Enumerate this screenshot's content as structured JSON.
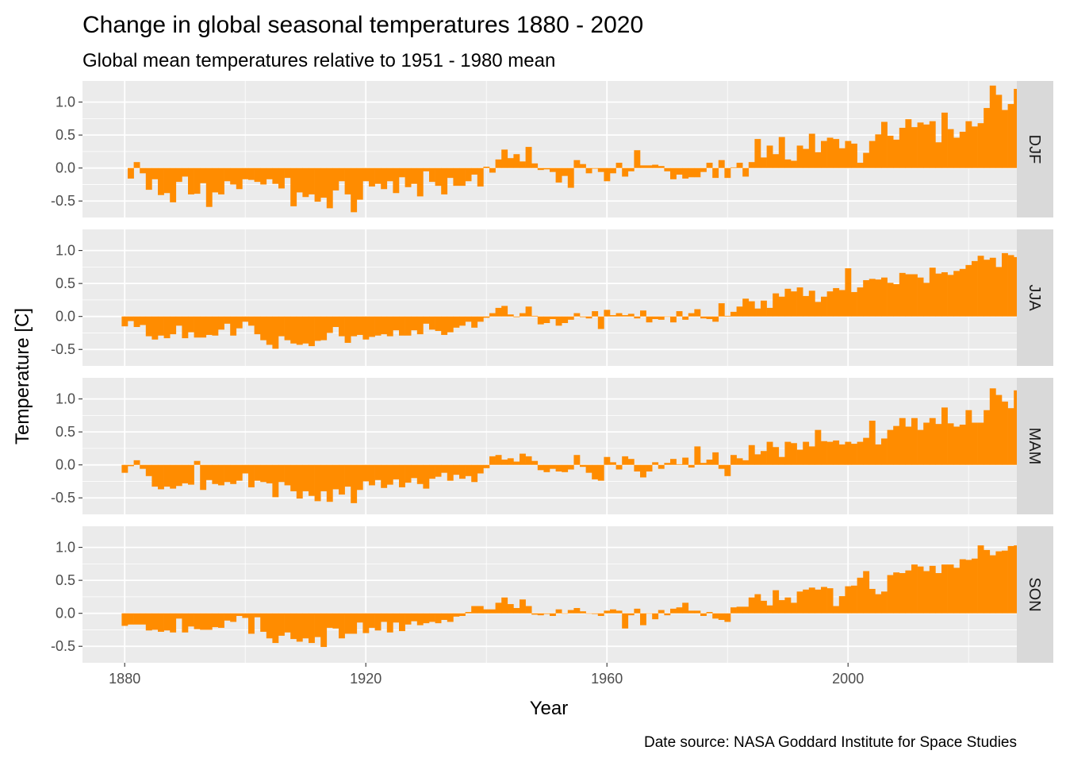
{
  "chart_data": {
    "type": "bar",
    "title": "Change in global seasonal temperatures 1880 - 2020",
    "subtitle": "Global mean temperatures relative to 1951 - 1980 mean",
    "xlabel": "Year",
    "ylabel": "Temperature [C]",
    "caption": "Date source: NASA Goddard Institute for Space Studies",
    "x_ticks": [
      1880,
      1920,
      1960,
      2000
    ],
    "y_ticks": [
      -0.5,
      0.0,
      0.5,
      1.0
    ],
    "y_tick_labels": [
      "-0.5",
      "0.0",
      "0.5",
      "1.0"
    ],
    "xlim": [
      1873,
      2028
    ],
    "ylim": [
      -0.75,
      1.32
    ],
    "bar_color": "#ff8c00",
    "panel_color": "#ebebeb",
    "strip_color": "#d9d9d9",
    "facets": [
      {
        "label": "DJF",
        "start_year": 1881,
        "values": [
          -0.16,
          0.09,
          -0.08,
          -0.33,
          -0.17,
          -0.41,
          -0.38,
          -0.52,
          -0.21,
          -0.13,
          -0.4,
          -0.39,
          -0.23,
          -0.59,
          -0.37,
          -0.4,
          -0.2,
          -0.25,
          -0.32,
          -0.17,
          -0.18,
          -0.21,
          -0.25,
          -0.17,
          -0.24,
          -0.31,
          -0.15,
          -0.58,
          -0.37,
          -0.44,
          -0.4,
          -0.51,
          -0.45,
          -0.61,
          -0.34,
          -0.2,
          -0.4,
          -0.67,
          -0.48,
          -0.2,
          -0.28,
          -0.24,
          -0.32,
          -0.2,
          -0.38,
          -0.14,
          -0.29,
          -0.24,
          -0.43,
          -0.05,
          -0.21,
          -0.27,
          -0.4,
          -0.15,
          -0.27,
          -0.27,
          -0.2,
          -0.1,
          -0.28,
          0.02,
          -0.07,
          0.13,
          0.28,
          0.15,
          0.21,
          0.1,
          0.32,
          0.07,
          -0.03,
          -0.02,
          -0.06,
          -0.22,
          -0.12,
          -0.3,
          0.12,
          0.06,
          -0.08,
          -0.01,
          -0.06,
          -0.2,
          -0.08,
          0.08,
          -0.13,
          -0.05,
          0.27,
          0.04,
          0.04,
          0.05,
          0.03,
          -0.05,
          -0.17,
          -0.1,
          -0.16,
          -0.14,
          -0.14,
          -0.06,
          0.08,
          -0.15,
          0.12,
          -0.15,
          0.01,
          0.08,
          -0.13,
          0.09,
          0.44,
          0.16,
          0.34,
          0.21,
          0.47,
          0.13,
          0.11,
          0.34,
          0.29,
          0.52,
          0.24,
          0.41,
          0.46,
          0.44,
          0.3,
          0.41,
          0.37,
          0.08,
          0.23,
          0.41,
          0.51,
          0.7,
          0.49,
          0.43,
          0.61,
          0.74,
          0.62,
          0.69,
          0.66,
          0.71,
          0.39,
          0.84,
          0.59,
          0.46,
          0.55,
          0.71,
          0.63,
          0.68,
          0.91,
          1.25,
          1.11,
          0.88,
          0.97,
          1.2,
          0.77
        ]
      },
      {
        "label": "JJA",
        "start_year": 1880,
        "values": [
          -0.15,
          -0.07,
          -0.16,
          -0.13,
          -0.3,
          -0.35,
          -0.29,
          -0.33,
          -0.27,
          -0.14,
          -0.33,
          -0.24,
          -0.32,
          -0.32,
          -0.28,
          -0.29,
          -0.2,
          -0.11,
          -0.29,
          -0.18,
          -0.08,
          -0.14,
          -0.27,
          -0.36,
          -0.43,
          -0.49,
          -0.3,
          -0.36,
          -0.41,
          -0.43,
          -0.41,
          -0.45,
          -0.37,
          -0.36,
          -0.25,
          -0.16,
          -0.3,
          -0.4,
          -0.3,
          -0.28,
          -0.35,
          -0.31,
          -0.29,
          -0.27,
          -0.3,
          -0.21,
          -0.29,
          -0.29,
          -0.21,
          -0.27,
          -0.11,
          -0.2,
          -0.22,
          -0.28,
          -0.24,
          -0.17,
          -0.14,
          -0.08,
          -0.17,
          -0.08,
          -0.02,
          0.05,
          0.13,
          0.16,
          0.03,
          -0.01,
          0.05,
          0.15,
          0.01,
          -0.12,
          -0.1,
          -0.04,
          -0.14,
          -0.1,
          -0.05,
          0.05,
          -0.01,
          -0.03,
          0.08,
          -0.19,
          0.1,
          0.02,
          0.05,
          0.02,
          0.04,
          -0.03,
          0.09,
          -0.09,
          -0.04,
          -0.05,
          0.0,
          -0.09,
          0.08,
          -0.05,
          0.05,
          0.11,
          -0.03,
          -0.04,
          -0.08,
          0.2,
          0.01,
          0.07,
          0.15,
          0.27,
          0.23,
          0.12,
          0.24,
          0.13,
          0.35,
          0.3,
          0.42,
          0.38,
          0.44,
          0.31,
          0.39,
          0.22,
          0.3,
          0.38,
          0.43,
          0.4,
          0.73,
          0.37,
          0.44,
          0.55,
          0.57,
          0.56,
          0.59,
          0.51,
          0.49,
          0.66,
          0.64,
          0.64,
          0.59,
          0.51,
          0.74,
          0.65,
          0.67,
          0.63,
          0.69,
          0.72,
          0.78,
          0.84,
          0.92,
          0.86,
          0.89,
          0.75,
          0.96,
          0.93,
          0.9
        ]
      },
      {
        "label": "MAM",
        "start_year": 1880,
        "values": [
          -0.12,
          -0.02,
          0.07,
          -0.06,
          -0.17,
          -0.33,
          -0.37,
          -0.33,
          -0.36,
          -0.32,
          -0.28,
          -0.3,
          0.06,
          -0.38,
          -0.23,
          -0.29,
          -0.31,
          -0.26,
          -0.29,
          -0.24,
          -0.13,
          -0.34,
          -0.24,
          -0.26,
          -0.28,
          -0.49,
          -0.26,
          -0.31,
          -0.4,
          -0.51,
          -0.4,
          -0.47,
          -0.55,
          -0.4,
          -0.56,
          -0.37,
          -0.45,
          -0.33,
          -0.58,
          -0.38,
          -0.25,
          -0.31,
          -0.23,
          -0.35,
          -0.3,
          -0.22,
          -0.34,
          -0.27,
          -0.2,
          -0.29,
          -0.36,
          -0.21,
          -0.18,
          -0.12,
          -0.24,
          -0.15,
          -0.21,
          -0.17,
          -0.26,
          -0.13,
          -0.05,
          0.13,
          0.15,
          0.08,
          0.1,
          0.05,
          0.17,
          0.13,
          0.06,
          -0.08,
          -0.11,
          -0.06,
          -0.1,
          -0.11,
          -0.07,
          0.15,
          -0.03,
          -0.12,
          -0.22,
          -0.24,
          0.12,
          0.04,
          -0.07,
          0.13,
          0.09,
          -0.1,
          -0.19,
          -0.1,
          0.04,
          -0.06,
          0.03,
          0.09,
          0.01,
          0.11,
          -0.04,
          0.28,
          0.03,
          0.08,
          0.19,
          -0.06,
          -0.17,
          0.15,
          0.1,
          0.07,
          0.3,
          0.16,
          0.21,
          0.35,
          0.27,
          0.12,
          0.35,
          0.33,
          0.23,
          0.35,
          0.28,
          0.53,
          0.36,
          0.35,
          0.37,
          0.31,
          0.35,
          0.32,
          0.35,
          0.41,
          0.67,
          0.31,
          0.4,
          0.53,
          0.59,
          0.71,
          0.58,
          0.71,
          0.53,
          0.64,
          0.71,
          0.62,
          0.87,
          0.63,
          0.58,
          0.61,
          0.83,
          0.64,
          0.64,
          0.83,
          1.16,
          1.06,
          0.96,
          0.86,
          1.13,
          0.82
        ]
      },
      {
        "label": "SON",
        "start_year": 1880,
        "values": [
          -0.19,
          -0.17,
          -0.17,
          -0.17,
          -0.26,
          -0.25,
          -0.28,
          -0.26,
          -0.29,
          -0.08,
          -0.29,
          -0.2,
          -0.24,
          -0.25,
          -0.25,
          -0.21,
          -0.22,
          -0.11,
          -0.13,
          -0.04,
          -0.07,
          -0.31,
          -0.06,
          -0.28,
          -0.38,
          -0.45,
          -0.34,
          -0.29,
          -0.39,
          -0.43,
          -0.38,
          -0.45,
          -0.36,
          -0.51,
          -0.22,
          -0.23,
          -0.38,
          -0.31,
          -0.31,
          -0.14,
          -0.3,
          -0.22,
          -0.26,
          -0.13,
          -0.29,
          -0.14,
          -0.27,
          -0.17,
          -0.12,
          -0.18,
          -0.15,
          -0.13,
          -0.15,
          -0.1,
          -0.13,
          -0.05,
          -0.04,
          0.02,
          0.11,
          0.11,
          0.06,
          0.06,
          0.16,
          0.24,
          0.14,
          0.08,
          0.21,
          0.11,
          -0.02,
          -0.03,
          -0.01,
          -0.04,
          0.06,
          0.0,
          0.05,
          0.08,
          0.03,
          0.0,
          -0.01,
          -0.04,
          0.04,
          0.06,
          0.04,
          -0.23,
          -0.03,
          0.07,
          -0.18,
          0.0,
          -0.09,
          0.05,
          -0.03,
          0.07,
          0.09,
          0.16,
          0.04,
          0.04,
          -0.04,
          0.02,
          -0.08,
          -0.1,
          -0.13,
          0.09,
          0.1,
          0.1,
          0.24,
          0.29,
          0.19,
          0.12,
          0.35,
          0.2,
          0.24,
          0.16,
          0.33,
          0.36,
          0.39,
          0.36,
          0.4,
          0.38,
          0.11,
          0.26,
          0.41,
          0.42,
          0.54,
          0.64,
          0.37,
          0.29,
          0.33,
          0.58,
          0.62,
          0.61,
          0.65,
          0.74,
          0.71,
          0.64,
          0.72,
          0.61,
          0.74,
          0.74,
          0.69,
          0.82,
          0.81,
          0.83,
          1.03,
          0.96,
          0.88,
          0.94,
          0.95,
          1.02,
          1.03
        ]
      }
    ]
  }
}
